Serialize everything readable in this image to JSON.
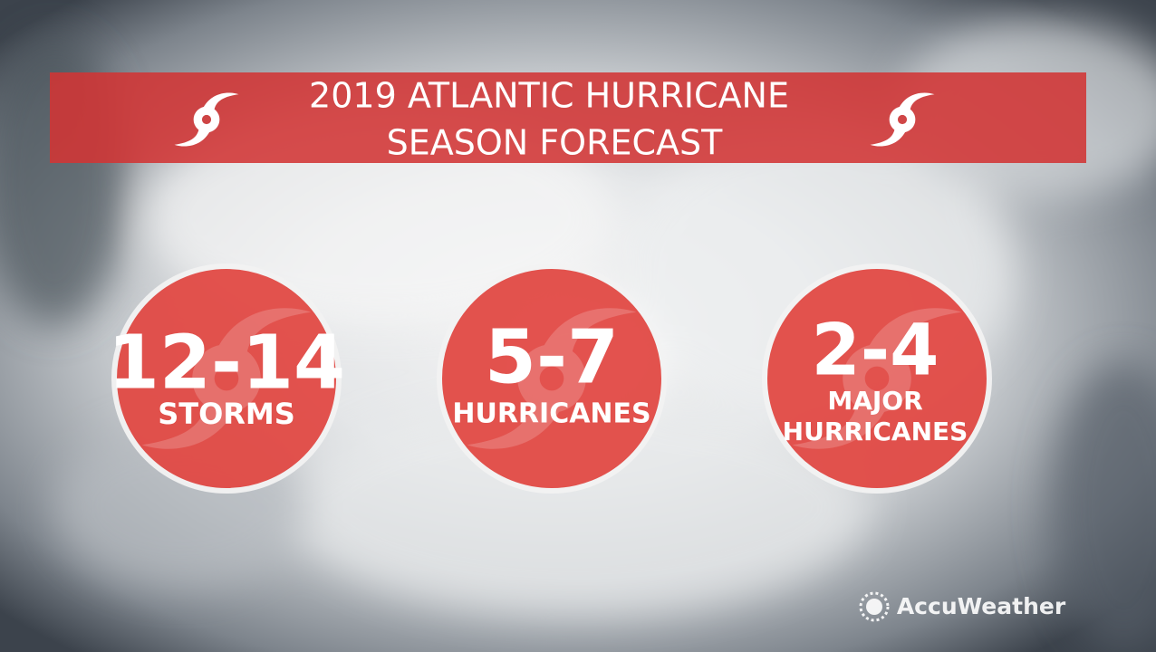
{
  "header": {
    "title_lines": [
      "2019 ATLANTIC HURRICANE",
      "SEASON FORECAST"
    ]
  },
  "circles": [
    {
      "range": "12-14",
      "label_lines": [
        "STORMS"
      ]
    },
    {
      "range": "5-7",
      "label_lines": [
        "HURRICANES"
      ]
    },
    {
      "range": "2-4",
      "label_lines": [
        "MAJOR",
        "HURRICANES"
      ]
    }
  ],
  "logo": {
    "text": "AccuWeather"
  }
}
